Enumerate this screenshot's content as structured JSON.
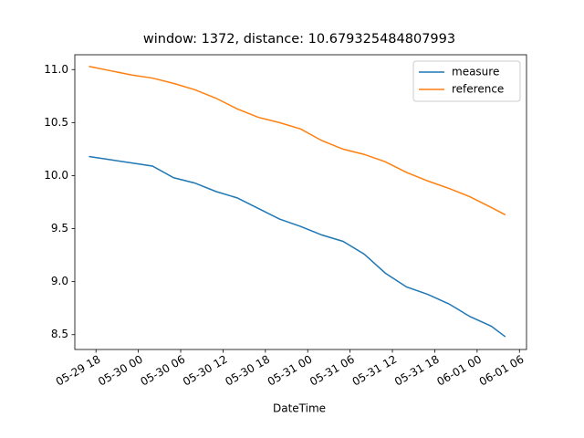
{
  "chart_data": {
    "type": "line",
    "title": "window: 1372, distance: 10.679325484807993",
    "xlabel": "DateTime",
    "x": [
      "05-29 17",
      "05-29 20",
      "05-29 23",
      "05-30 02",
      "05-30 05",
      "05-30 08",
      "05-30 11",
      "05-30 14",
      "05-30 17",
      "05-30 20",
      "05-30 23",
      "05-31 02",
      "05-31 05",
      "05-31 08",
      "05-31 11",
      "05-31 14",
      "05-31 17",
      "05-31 20",
      "05-31 23",
      "06-01 02",
      "06-01 04"
    ],
    "series": [
      {
        "name": "measure",
        "color": "#1f77b4",
        "values": [
          10.18,
          10.15,
          10.12,
          10.09,
          9.98,
          9.93,
          9.85,
          9.79,
          9.69,
          9.59,
          9.52,
          9.44,
          9.38,
          9.26,
          9.08,
          8.95,
          8.88,
          8.79,
          8.67,
          8.58,
          8.48
        ]
      },
      {
        "name": "reference",
        "color": "#ff7f0e",
        "values": [
          11.03,
          10.99,
          10.95,
          10.92,
          10.87,
          10.81,
          10.73,
          10.63,
          10.55,
          10.5,
          10.44,
          10.33,
          10.25,
          10.2,
          10.13,
          10.03,
          9.95,
          9.88,
          9.8,
          9.7,
          9.63
        ]
      }
    ],
    "xlim": [
      "05-29 15",
      "06-01 07"
    ],
    "xticks": [
      "05-29 18",
      "05-30 00",
      "05-30 06",
      "05-30 12",
      "05-30 18",
      "05-31 00",
      "05-31 06",
      "05-31 12",
      "05-31 18",
      "06-01 00",
      "06-01 06"
    ],
    "ylim": [
      8.36,
      11.14
    ],
    "yticks": [
      {
        "value": 8.5,
        "label": "8.5"
      },
      {
        "value": 9,
        "label": "9.0"
      },
      9.5,
      {
        "value": 10,
        "label": "10.0"
      },
      10.5,
      {
        "value": 11,
        "label": "11.0"
      }
    ],
    "legend": "upper right"
  }
}
